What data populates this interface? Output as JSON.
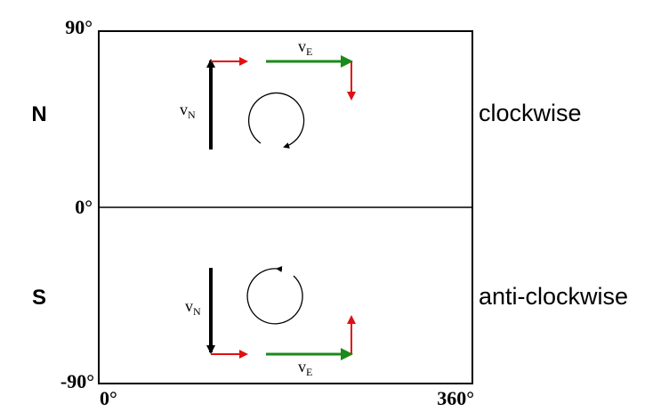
{
  "axes": {
    "lat_top": "90°",
    "lat_mid": "0°",
    "lat_bottom": "-90°",
    "lon_left": "0°",
    "lon_right": "360°"
  },
  "hemispheres": {
    "north": {
      "label": "N",
      "rotation": "clockwise"
    },
    "south": {
      "label": "S",
      "rotation": "anti-clockwise"
    }
  },
  "vectors": {
    "north_vn": {
      "main": "v",
      "sub": "N"
    },
    "north_ve": {
      "main": "v",
      "sub": "E"
    },
    "south_vn": {
      "main": "v",
      "sub": "N"
    },
    "south_ve": {
      "main": "v",
      "sub": "E"
    }
  },
  "colors": {
    "vn_arrow": "#000000",
    "ve_arrow": "#1a8a1a",
    "deflection_arrow": "#e01010"
  }
}
